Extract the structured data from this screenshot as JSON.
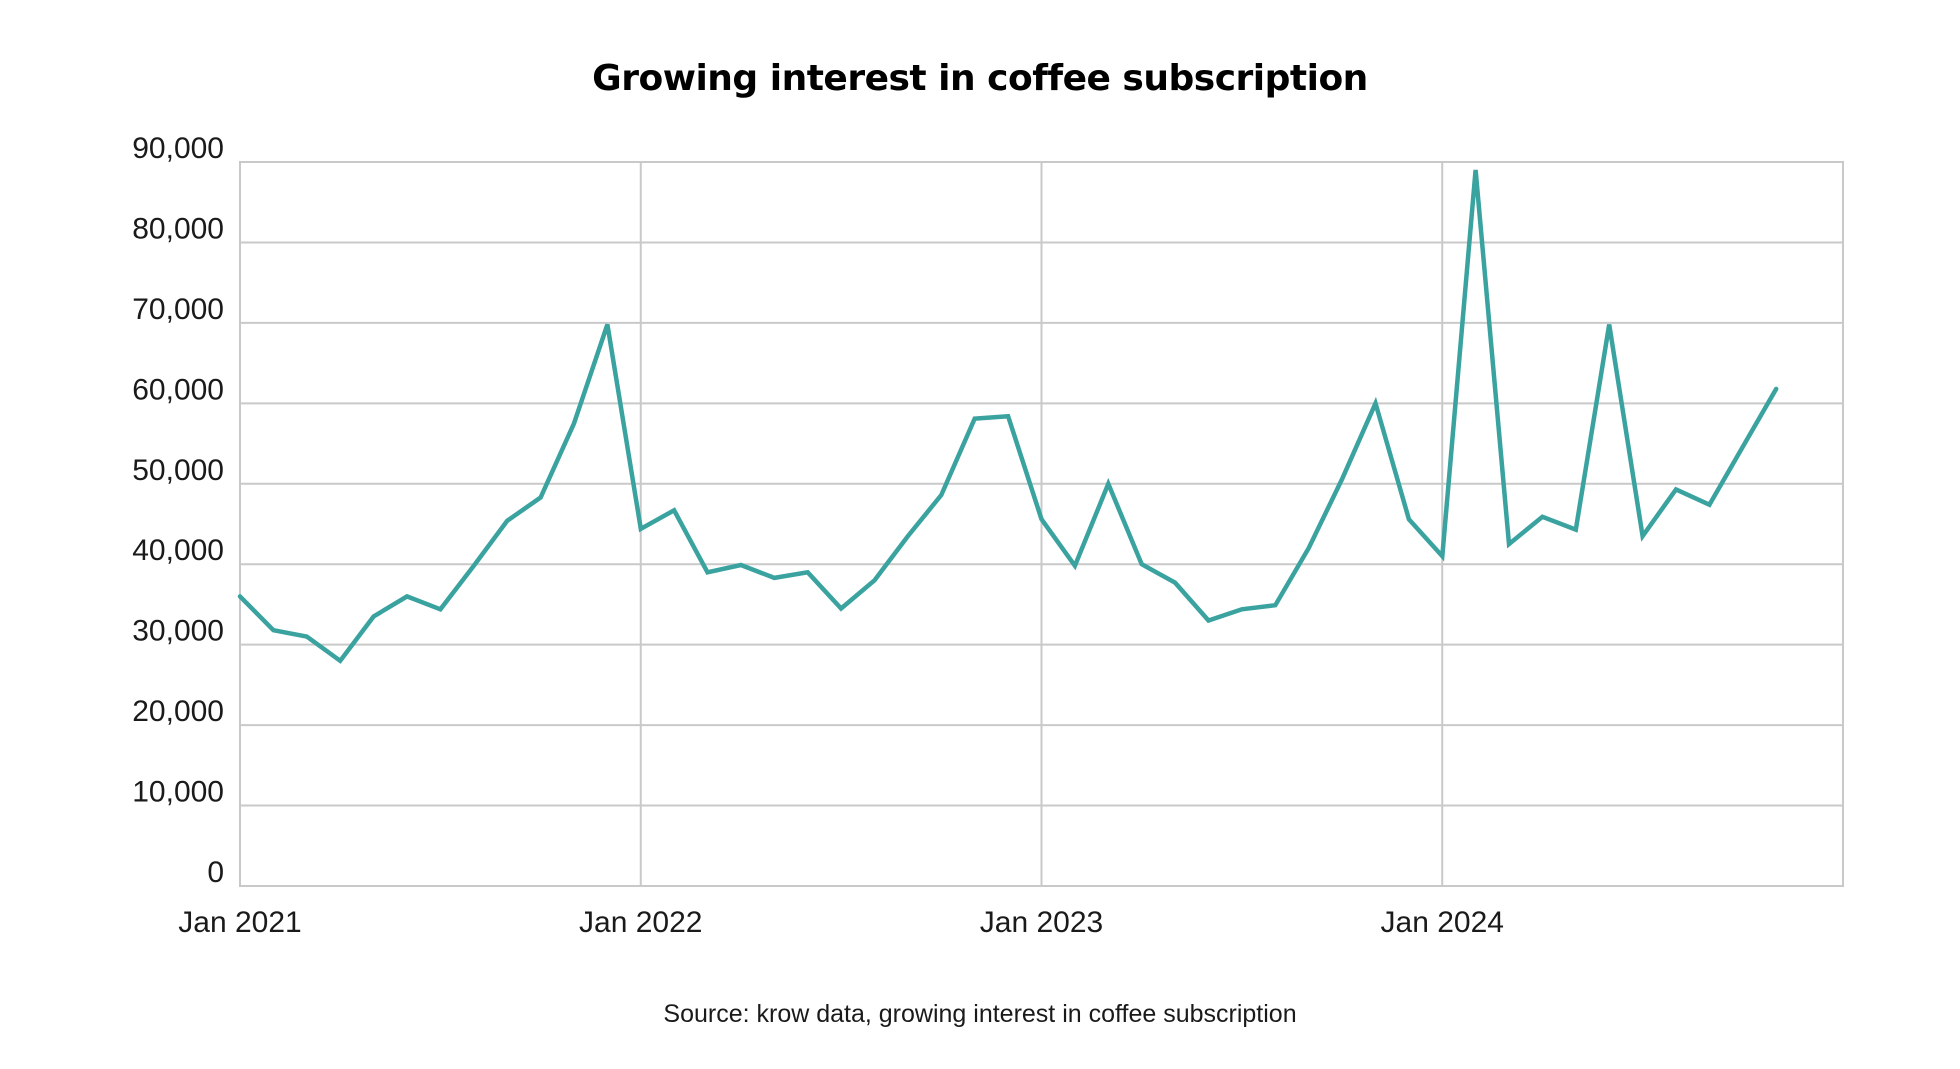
{
  "chart_data": {
    "type": "line",
    "title": "Growing interest in coffee subscription",
    "source": "Source: krow data, growing interest in coffee subscription",
    "xlabel": "",
    "ylabel": "",
    "ylim": [
      0,
      90000
    ],
    "yticks": [
      0,
      10000,
      20000,
      30000,
      40000,
      50000,
      60000,
      70000,
      80000,
      90000
    ],
    "ytick_labels": [
      "0",
      "10,000",
      "20,000",
      "30,000",
      "40,000",
      "50,000",
      "60,000",
      "70,000",
      "80,000",
      "90,000"
    ],
    "xlim": [
      0,
      48
    ],
    "xticks": [
      0,
      12,
      24,
      36
    ],
    "xtick_labels": [
      "Jan 2021",
      "Jan 2022",
      "Jan 2023",
      "Jan 2024"
    ],
    "grid": true,
    "color": "#3aa3a0",
    "series": [
      {
        "name": "Interest in coffee subscription",
        "x": [
          0,
          1,
          2,
          3,
          4,
          5,
          6,
          7,
          8,
          9,
          10,
          11,
          12,
          13,
          14,
          15,
          16,
          17,
          18,
          19,
          20,
          21,
          22,
          23,
          24,
          25,
          26,
          27,
          28,
          29,
          30,
          31,
          32,
          33,
          34,
          35,
          36,
          37,
          38,
          39,
          40,
          41,
          42,
          43,
          44,
          45,
          46,
          47
        ],
        "values": [
          36000,
          31800,
          31000,
          28000,
          33500,
          36000,
          34400,
          39800,
          45400,
          48300,
          57500,
          69800,
          44400,
          46700,
          39000,
          39900,
          38300,
          39000,
          34500,
          38000,
          43500,
          48600,
          58100,
          58400,
          45600,
          39800,
          50000,
          40000,
          37700,
          33000,
          34400,
          34900,
          42000,
          50600,
          60000,
          45600,
          41000,
          89000,
          42500,
          45900,
          44300,
          69800,
          43500,
          49300,
          47400,
          54600,
          61800,
          null
        ]
      }
    ]
  }
}
